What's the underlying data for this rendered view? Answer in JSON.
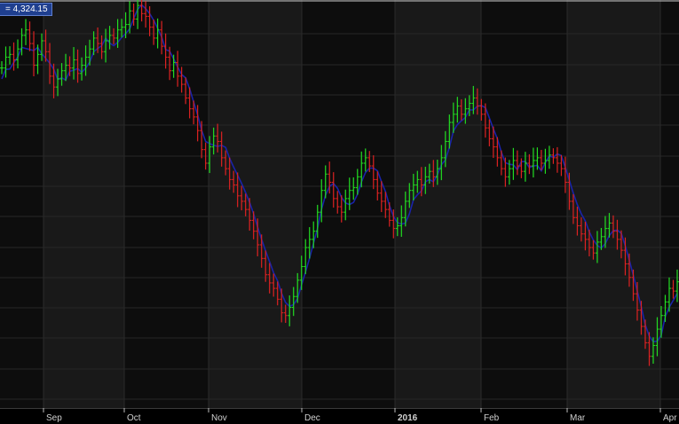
{
  "header": {
    "value_label": "= 4,324.15"
  },
  "chart_data": {
    "type": "ohlc",
    "value_readout": "4,324.15",
    "x_labels": [
      "Sep",
      "Oct",
      "Nov",
      "Dec",
      "2016",
      "Feb",
      "Mar",
      "Apr"
    ],
    "ylim": [
      3800,
      5300
    ],
    "grid": true,
    "series": [
      {
        "type": "ohlc",
        "colors": {
          "up": "#22dd22",
          "down": "#dd2222"
        },
        "closes": [
          5050,
          5090,
          5100,
          5080,
          5120,
          5170,
          5190,
          5140,
          5060,
          5100,
          5150,
          5110,
          5020,
          4980,
          5010,
          5040,
          5060,
          5050,
          5080,
          5030,
          5060,
          5090,
          5120,
          5160,
          5140,
          5110,
          5150,
          5170,
          5160,
          5190,
          5200,
          5210,
          5260,
          5230,
          5280,
          5250,
          5240,
          5200,
          5160,
          5190,
          5130,
          5090,
          5040,
          5070,
          5020,
          4990,
          4940,
          4900,
          4870,
          4820,
          4750,
          4700,
          4760,
          4800,
          4780,
          4720,
          4680,
          4640,
          4620,
          4580,
          4560,
          4530,
          4490,
          4450,
          4400,
          4350,
          4290,
          4260,
          4240,
          4200,
          4150,
          4140,
          4170,
          4210,
          4270,
          4320,
          4390,
          4420,
          4450,
          4520,
          4600,
          4660,
          4630,
          4570,
          4540,
          4520,
          4570,
          4600,
          4610,
          4650,
          4700,
          4720,
          4690,
          4640,
          4590,
          4560,
          4530,
          4490,
          4460,
          4470,
          4500,
          4560,
          4600,
          4620,
          4640,
          4620,
          4650,
          4670,
          4650,
          4680,
          4720,
          4780,
          4850,
          4880,
          4910,
          4880,
          4900,
          4920,
          4940,
          4910,
          4880,
          4830,
          4790,
          4760,
          4720,
          4680,
          4650,
          4680,
          4710,
          4690,
          4670,
          4700,
          4690,
          4710,
          4720,
          4700,
          4710,
          4730,
          4720,
          4700,
          4680,
          4630,
          4560,
          4500,
          4470,
          4440,
          4420,
          4390,
          4370,
          4410,
          4430,
          4460,
          4480,
          4450,
          4420,
          4380,
          4330,
          4280,
          4220,
          4160,
          4100,
          4040,
          3990,
          4030,
          4090,
          4140,
          4190,
          4240,
          4230,
          4264
        ]
      },
      {
        "type": "line",
        "color": "#1a23a8"
      }
    ]
  }
}
